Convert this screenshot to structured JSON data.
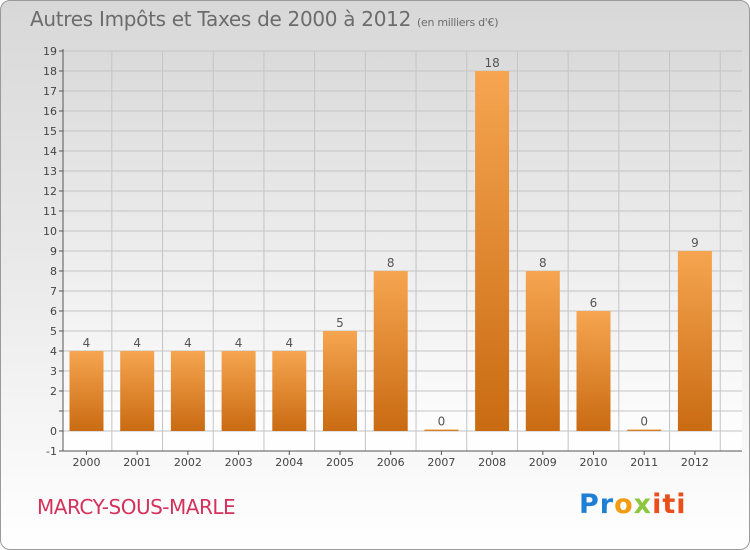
{
  "header": {
    "title": "Autres Impôts et Taxes de 2000 à 2012",
    "unit": "(en milliers d'€)"
  },
  "footer": {
    "place": "MARCY-SOUS-MARLE",
    "logo_parts": [
      "Pr",
      "o",
      "x",
      "iti"
    ]
  },
  "colors": {
    "bar_top": "#f6a550",
    "bar_bottom": "#c96b12",
    "place": "#d4315c",
    "title": "#6c6c6c"
  },
  "chart_data": {
    "type": "bar",
    "title": "Autres Impôts et Taxes de 2000 à 2012",
    "subtitle": "(en milliers d'€)",
    "categories": [
      "2000",
      "2001",
      "2002",
      "2003",
      "2004",
      "2005",
      "2006",
      "2007",
      "2008",
      "2009",
      "2010",
      "2011",
      "2012"
    ],
    "values": [
      4,
      4,
      4,
      4,
      4,
      5,
      8,
      0,
      18,
      8,
      6,
      0,
      9
    ],
    "data_labels": [
      "4",
      "4",
      "4",
      "4",
      "4",
      "5",
      "8",
      "0",
      "18",
      "8",
      "6",
      "0",
      "9"
    ],
    "y_ticks": [
      -1,
      0,
      1,
      2,
      3,
      4,
      5,
      6,
      7,
      8,
      9,
      10,
      11,
      12,
      13,
      14,
      15,
      16,
      17,
      18,
      19
    ],
    "y_tick_labels": [
      "-1",
      "0",
      "",
      "2",
      "3",
      "4",
      "5",
      "6",
      "7",
      "8",
      "9",
      "10",
      "11",
      "12",
      "13",
      "14",
      "15",
      "16",
      "17",
      "18",
      "19"
    ],
    "ylim": [
      -1,
      19
    ],
    "xlabel": "",
    "ylabel": "",
    "grid": true,
    "legend": "none"
  }
}
